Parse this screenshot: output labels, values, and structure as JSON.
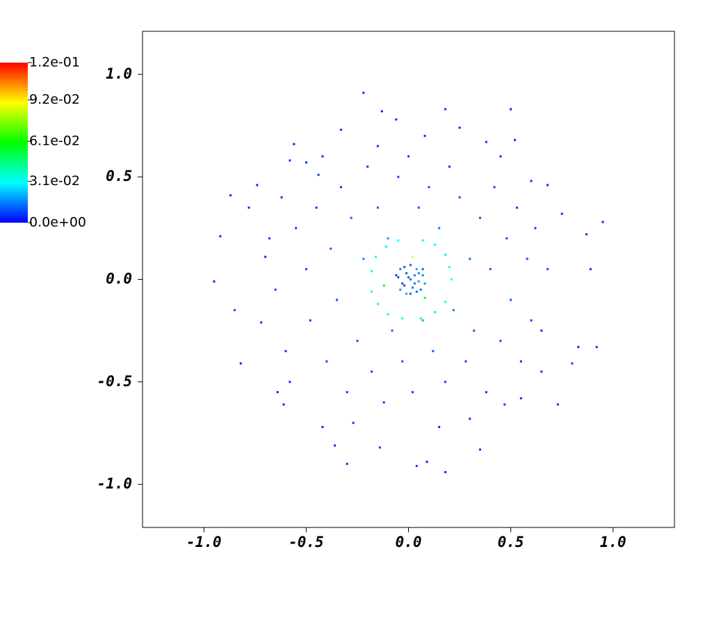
{
  "chart_data": {
    "type": "scatter",
    "x": [
      -0.95,
      -0.92,
      -0.87,
      -0.82,
      -0.85,
      -0.78,
      -0.74,
      -0.7,
      -0.72,
      -0.64,
      -0.61,
      -0.58,
      -0.56,
      -0.5,
      -0.44,
      -0.42,
      -0.36,
      -0.33,
      -0.3,
      -0.22,
      -0.14,
      -0.13,
      -0.06,
      0.04,
      0.09,
      0.18,
      0.18,
      0.25,
      0.35,
      0.38,
      0.5,
      0.52,
      0.6,
      0.68,
      0.75,
      0.8,
      0.83,
      0.87,
      0.92,
      0.95,
      0.89,
      0.73,
      0.65,
      0.55,
      0.47,
      -0.55,
      -0.5,
      -0.48,
      -0.45,
      -0.4,
      -0.38,
      -0.35,
      -0.33,
      -0.3,
      -0.28,
      -0.25,
      -0.22,
      -0.2,
      -0.18,
      -0.15,
      -0.12,
      -0.1,
      -0.08,
      -0.05,
      -0.03,
      0.0,
      0.02,
      0.05,
      0.07,
      0.1,
      0.12,
      0.15,
      0.18,
      0.2,
      0.22,
      0.25,
      0.28,
      0.3,
      0.32,
      0.35,
      0.38,
      0.4,
      0.42,
      0.45,
      0.48,
      0.5,
      0.53,
      0.55,
      0.58,
      0.6,
      0.62,
      0.65,
      0.68,
      -0.6,
      -0.62,
      -0.65,
      -0.58,
      -0.42,
      -0.27,
      0.08,
      0.3,
      0.45,
      -0.15,
      0.15,
      -0.68,
      0.21,
      0.2,
      0.18,
      0.13,
      0.07,
      -0.05,
      -0.11,
      -0.16,
      -0.18,
      -0.18,
      -0.15,
      -0.1,
      -0.03,
      0.06,
      0.13,
      0.18,
      0.01,
      0.03,
      -0.01,
      0.05,
      -0.03,
      0.02,
      0.04,
      -0.02,
      0.07,
      -0.05,
      0.06,
      -0.04,
      0.01,
      0.01,
      0.08,
      -0.06,
      0.03,
      0.0,
      0.05,
      -0.02,
      0.04,
      -0.01,
      0.07,
      -0.04,
      0.02,
      -0.12,
      0.08
    ],
    "y": [
      -0.01,
      0.21,
      0.41,
      -0.41,
      -0.15,
      0.35,
      0.46,
      0.11,
      -0.21,
      -0.55,
      -0.61,
      0.58,
      0.66,
      0.57,
      0.51,
      -0.72,
      -0.81,
      0.73,
      -0.9,
      0.91,
      -0.82,
      0.82,
      0.78,
      -0.91,
      -0.89,
      -0.94,
      0.83,
      0.74,
      -0.83,
      0.67,
      0.83,
      0.68,
      0.48,
      0.46,
      0.32,
      -0.41,
      -0.33,
      0.22,
      -0.33,
      0.28,
      0.05,
      -0.61,
      -0.25,
      -0.58,
      -0.61,
      0.25,
      0.05,
      -0.2,
      0.35,
      -0.4,
      0.15,
      -0.1,
      0.45,
      -0.55,
      0.3,
      -0.3,
      0.1,
      0.55,
      -0.45,
      0.35,
      -0.6,
      0.2,
      -0.25,
      0.5,
      -0.4,
      0.6,
      -0.55,
      0.35,
      -0.2,
      0.45,
      -0.35,
      0.25,
      -0.5,
      0.55,
      -0.15,
      0.4,
      -0.4,
      0.1,
      -0.25,
      0.3,
      -0.55,
      0.05,
      0.45,
      -0.3,
      0.2,
      -0.1,
      0.35,
      -0.4,
      0.1,
      -0.2,
      0.25,
      -0.45,
      0.05,
      -0.35,
      0.4,
      -0.05,
      -0.5,
      0.6,
      -0.7,
      0.7,
      -0.68,
      0.6,
      0.65,
      -0.72,
      0.2,
      0.0,
      0.06,
      0.12,
      0.17,
      0.19,
      0.19,
      0.16,
      0.11,
      0.04,
      -0.06,
      -0.12,
      -0.17,
      -0.19,
      -0.19,
      -0.16,
      -0.11,
      0.0,
      0.02,
      0.03,
      -0.01,
      -0.02,
      -0.04,
      0.05,
      0.06,
      0.02,
      0.01,
      -0.05,
      -0.05,
      0.07,
      -0.07,
      -0.02,
      0.02,
      -0.02,
      0.01,
      0.03,
      -0.03,
      -0.06,
      -0.07,
      0.05,
      0.05,
      0.11,
      -0.03,
      -0.09
    ],
    "c": [
      0.004,
      0.006,
      0.005,
      0.004,
      0.007,
      0.005,
      0.004,
      0.006,
      0.005,
      0.004,
      0.005,
      0.006,
      0.004,
      0.005,
      0.007,
      0.004,
      0.005,
      0.006,
      0.004,
      0.005,
      0.006,
      0.004,
      0.005,
      0.007,
      0.004,
      0.005,
      0.006,
      0.004,
      0.005,
      0.006,
      0.004,
      0.005,
      0.006,
      0.004,
      0.005,
      0.007,
      0.004,
      0.005,
      0.006,
      0.004,
      0.005,
      0.006,
      0.004,
      0.005,
      0.006,
      0.006,
      0.008,
      0.007,
      0.006,
      0.008,
      0.012,
      0.01,
      0.006,
      0.007,
      0.011,
      0.009,
      0.016,
      0.006,
      0.008,
      0.01,
      0.006,
      0.018,
      0.012,
      0.007,
      0.009,
      0.006,
      0.007,
      0.01,
      0.02,
      0.008,
      0.011,
      0.015,
      0.007,
      0.006,
      0.014,
      0.009,
      0.008,
      0.012,
      0.011,
      0.009,
      0.006,
      0.01,
      0.007,
      0.008,
      0.009,
      0.01,
      0.007,
      0.006,
      0.009,
      0.008,
      0.007,
      0.006,
      0.008,
      0.006,
      0.005,
      0.007,
      0.006,
      0.005,
      0.006,
      0.005,
      0.006,
      0.005,
      0.006,
      0.005,
      0.006,
      0.03,
      0.034,
      0.028,
      0.032,
      0.036,
      0.03,
      0.027,
      0.033,
      0.031,
      0.035,
      0.029,
      0.032,
      0.03,
      0.034,
      0.028,
      0.031,
      0.012,
      0.015,
      0.01,
      0.018,
      0.008,
      0.014,
      0.02,
      0.011,
      0.016,
      0.009,
      0.013,
      0.017,
      0.01,
      0.012,
      0.019,
      0.008,
      0.014,
      0.011,
      0.016,
      0.009,
      0.013,
      0.02,
      0.01,
      0.015,
      0.085,
      0.06,
      0.05
    ],
    "xlim": [
      -1.3,
      1.3
    ],
    "ylim": [
      -1.21,
      1.21
    ],
    "xticks": [
      {
        "value": -1,
        "label": "-1.0"
      },
      {
        "value": -0.5,
        "label": "-0.5"
      },
      {
        "value": 0,
        "label": "0.0"
      },
      {
        "value": 0.5,
        "label": "0.5"
      },
      {
        "value": 1,
        "label": "1.0"
      }
    ],
    "yticks": [
      {
        "value": -1,
        "label": "-1.0"
      },
      {
        "value": -0.5,
        "label": "-0.5"
      },
      {
        "value": 0,
        "label": "0.0"
      },
      {
        "value": 0.5,
        "label": "0.5"
      },
      {
        "value": 1,
        "label": "1.0"
      }
    ],
    "clim": [
      0,
      0.12
    ],
    "cticks": [
      {
        "value": 0,
        "label": "0.0e+00"
      },
      {
        "value": 0.031,
        "label": "3.1e-02"
      },
      {
        "value": 0.061,
        "label": "6.1e-02"
      },
      {
        "value": 0.092,
        "label": "9.2e-02"
      },
      {
        "value": 0.12,
        "label": "1.2e-01"
      }
    ],
    "colormap": [
      "#0000ff",
      "#00ffff",
      "#00ff00",
      "#ffff00",
      "#ff0000"
    ]
  }
}
